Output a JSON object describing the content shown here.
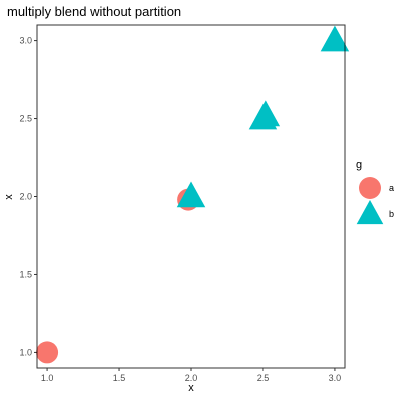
{
  "chart_data": {
    "type": "scatter",
    "title": "multiply blend without partition",
    "xlabel": "x",
    "ylabel": "x",
    "xlim": [
      0.93,
      3.07
    ],
    "ylim": [
      0.9,
      3.1
    ],
    "xticks": [
      "1.0",
      "1.5",
      "2.0",
      "2.5",
      "3.0"
    ],
    "yticks": [
      "1.0",
      "1.5",
      "2.0",
      "2.5",
      "3.0"
    ],
    "grid": false,
    "legend": {
      "title": "g",
      "position": "right",
      "entries": [
        {
          "label": "a",
          "shape": "circle",
          "color": "#F8766D"
        },
        {
          "label": "b",
          "shape": "triangle",
          "color": "#00BFC4"
        }
      ]
    },
    "series": [
      {
        "name": "a",
        "shape": "circle",
        "color": "#F8766D",
        "points": [
          {
            "x": 1.0,
            "y": 1.0
          },
          {
            "x": 1.98,
            "y": 1.98
          }
        ]
      },
      {
        "name": "b",
        "shape": "triangle",
        "color": "#00BFC4",
        "points": [
          {
            "x": 2.0,
            "y": 2.0
          },
          {
            "x": 2.5,
            "y": 2.5
          },
          {
            "x": 2.52,
            "y": 2.52
          },
          {
            "x": 3.0,
            "y": 3.0
          }
        ]
      }
    ]
  }
}
